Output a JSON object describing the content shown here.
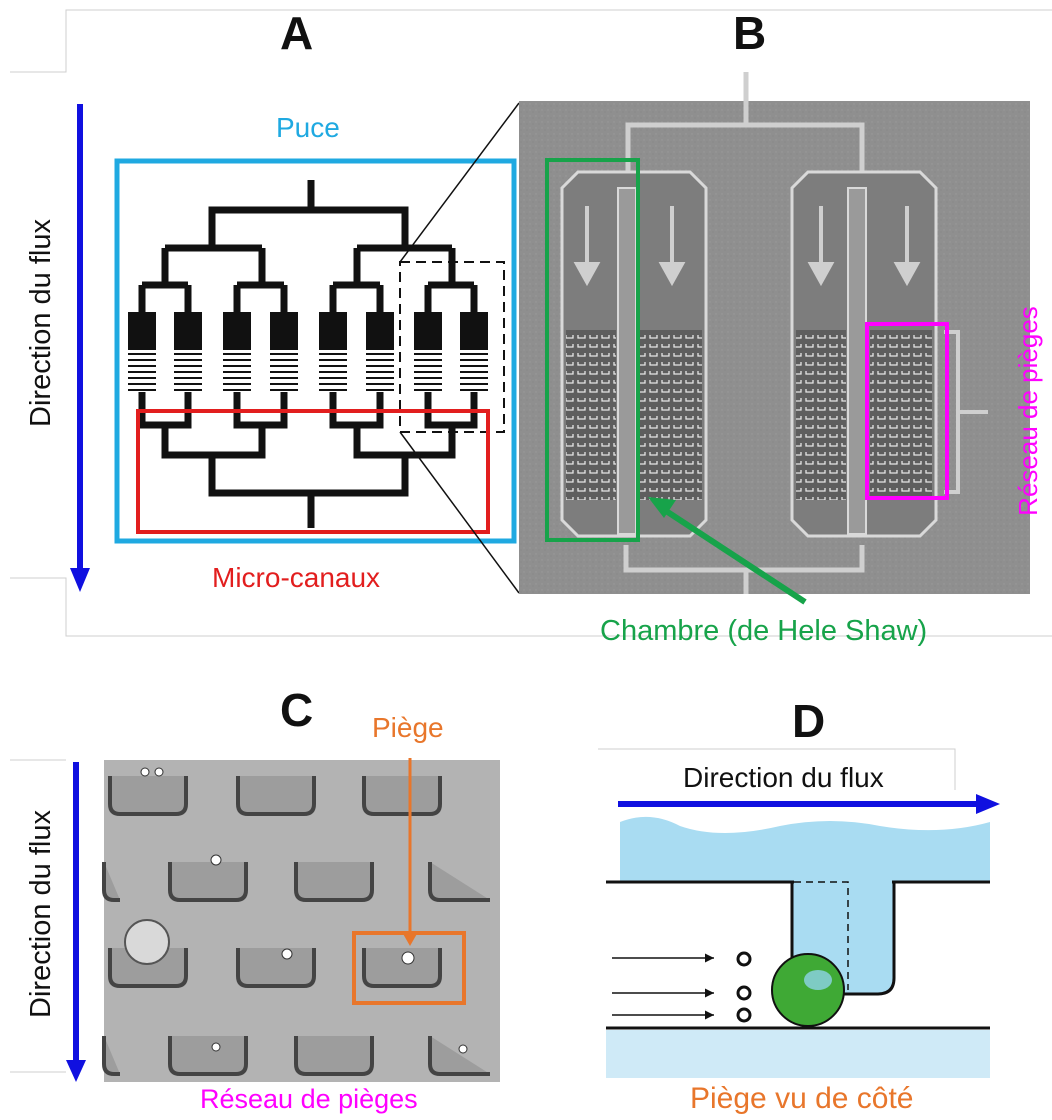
{
  "panels": {
    "a": {
      "letter": "A",
      "chip_label": "Puce",
      "channels_label": "Micro-canaux",
      "flow_label": "Direction du flux"
    },
    "b": {
      "letter": "B",
      "array_label": "Réseau de pièges",
      "chamber_label": "Chambre (de Hele Shaw)"
    },
    "c": {
      "letter": "C",
      "trap_label": "Piège",
      "flow_label": "Direction du flux",
      "array_label": "Réseau de pièges"
    },
    "d": {
      "letter": "D",
      "flow_label": "Direction du flux",
      "caption": "Piège vu de côté"
    }
  },
  "colors": {
    "chip": "#1fa9e1",
    "channels": "#e21e1e",
    "chamber": "#17a34a",
    "array": "#ff00ff",
    "trap": "#e8762b",
    "flow_arrow": "#1010e0",
    "fluid": "#a9dcf2",
    "cell": "#3fa935"
  },
  "icons": [
    "down-arrow-icon",
    "right-arrow-icon"
  ]
}
